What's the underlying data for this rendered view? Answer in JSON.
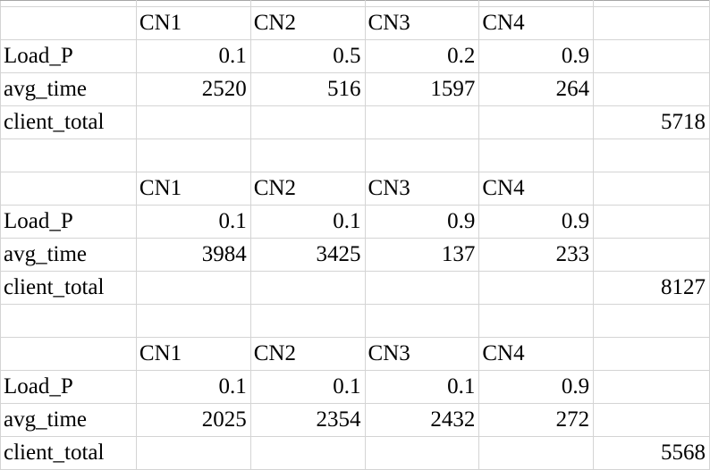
{
  "blocks": [
    {
      "header": [
        "CN1",
        "CN2",
        "CN3",
        "CN4"
      ],
      "load_label": "Load_P",
      "load": [
        "0.1",
        "0.5",
        "0.2",
        "0.9"
      ],
      "avg_label": "avg_time",
      "avg": [
        "2520",
        "516",
        "1597",
        "264"
      ],
      "total_label": "client_total",
      "total": "5718"
    },
    {
      "header": [
        "CN1",
        "CN2",
        "CN3",
        "CN4"
      ],
      "load_label": "Load_P",
      "load": [
        "0.1",
        "0.1",
        "0.9",
        "0.9"
      ],
      "avg_label": "avg_time",
      "avg": [
        "3984",
        "3425",
        "137",
        "233"
      ],
      "total_label": "client_total",
      "total": "8127"
    },
    {
      "header": [
        "CN1",
        "CN2",
        "CN3",
        "CN4"
      ],
      "load_label": "Load_P",
      "load": [
        "0.1",
        "0.1",
        "0.1",
        "0.9"
      ],
      "avg_label": "avg_time",
      "avg": [
        "2025",
        "2354",
        "2432",
        "272"
      ],
      "total_label": "client_total",
      "total": "5568"
    }
  ]
}
